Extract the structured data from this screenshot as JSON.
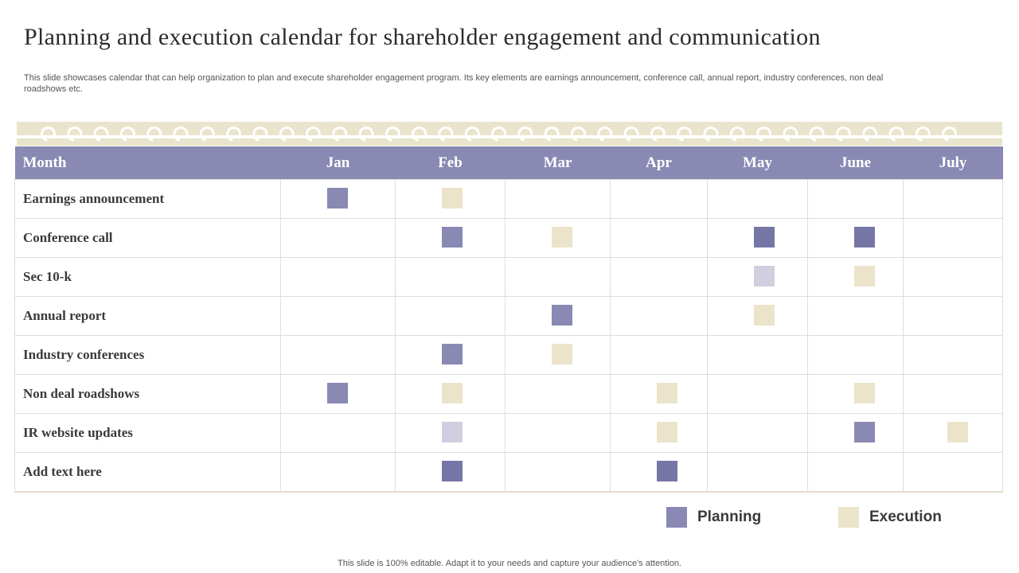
{
  "title": "Planning and execution calendar for shareholder engagement and communication",
  "subtitle": "This slide showcases calendar that can help organization to plan and execute  shareholder engagement program. Its key elements are earnings announcement, conference call, annual report, industry conferences, non deal roadshows etc.",
  "colors": {
    "header": "#8989b4",
    "planning": "#8989b4",
    "planning_dark": "#7676a6",
    "planning_light": "#cfcfe0",
    "execution": "#ebe4cb"
  },
  "table": {
    "header": [
      "Month",
      "Jan",
      "Feb",
      "Mar",
      "Apr",
      "May",
      "June",
      "July"
    ],
    "rows": [
      {
        "label": "Earnings announcement",
        "cells": [
          "planning",
          "execution",
          "",
          "",
          "",
          "",
          ""
        ]
      },
      {
        "label": "Conference call",
        "cells": [
          "",
          "planning",
          "execution",
          "",
          "planning_dark",
          "planning_dark",
          ""
        ]
      },
      {
        "label": "Sec 10-k",
        "cells": [
          "",
          "",
          "",
          "",
          "planning_light",
          "execution",
          ""
        ]
      },
      {
        "label": "Annual report",
        "cells": [
          "",
          "",
          "planning",
          "",
          "execution",
          "",
          ""
        ]
      },
      {
        "label": "Industry conferences",
        "cells": [
          "",
          "planning",
          "execution",
          "",
          "",
          "",
          ""
        ]
      },
      {
        "label": "Non deal roadshows",
        "cells": [
          "planning",
          "execution",
          "",
          "execution",
          "",
          "execution",
          ""
        ]
      },
      {
        "label": "IR website updates",
        "cells": [
          "",
          "planning_light",
          "",
          "execution",
          "",
          "planning",
          "execution"
        ]
      },
      {
        "label": "Add text here",
        "cells": [
          "",
          "planning_dark",
          "",
          "planning_dark",
          "",
          "",
          ""
        ]
      }
    ]
  },
  "legend": {
    "planning_label": "Planning",
    "execution_label": "Execution"
  },
  "footer": "This slide is 100% editable. Adapt it to your needs and capture your audience's attention."
}
